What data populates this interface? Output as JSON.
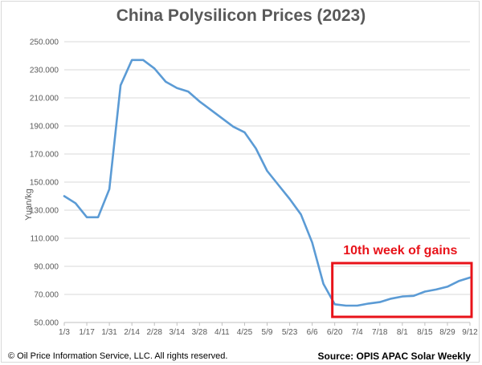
{
  "chart_data": {
    "type": "line",
    "title": "China Polysilicon Prices (2023)",
    "ylabel": "Yuan/kg",
    "ylim": [
      50000,
      250000
    ],
    "y_ticks": [
      "50.000",
      "70.000",
      "90.000",
      "110.000",
      "130.000",
      "150.000",
      "170.000",
      "190.000",
      "210.000",
      "230.000",
      "250.000"
    ],
    "x_tick_labels": [
      "1/3",
      "1/17",
      "1/31",
      "2/14",
      "2/28",
      "3/14",
      "3/28",
      "4/11",
      "4/25",
      "5/9",
      "5/23",
      "6/6",
      "6/20",
      "7/4",
      "7/18",
      "8/1",
      "8/15",
      "8/29",
      "9/12"
    ],
    "x": [
      "1/3",
      "1/10",
      "1/17",
      "1/24",
      "1/31",
      "2/7",
      "2/14",
      "2/21",
      "2/28",
      "3/7",
      "3/14",
      "3/21",
      "3/28",
      "4/4",
      "4/11",
      "4/18",
      "4/25",
      "5/2",
      "5/9",
      "5/16",
      "5/23",
      "5/30",
      "6/6",
      "6/13",
      "6/20",
      "6/27",
      "7/4",
      "7/11",
      "7/18",
      "7/25",
      "8/1",
      "8/8",
      "8/15",
      "8/22",
      "8/29",
      "9/5",
      "9/12"
    ],
    "series": [
      {
        "color": "#5b9bd5",
        "values": [
          140000,
          135000,
          125000,
          125000,
          145000,
          219000,
          237000,
          237000,
          231000,
          221500,
          217000,
          214500,
          207500,
          201500,
          195500,
          189500,
          185500,
          174000,
          158000,
          148000,
          138000,
          127000,
          107000,
          77500,
          63000,
          62000,
          62000,
          63500,
          64500,
          67000,
          68500,
          69000,
          72000,
          73500,
          75500,
          79500,
          82000
        ]
      }
    ],
    "grid": "horizontal",
    "annotations": [
      {
        "text": "10th week of gains",
        "color": "#e8131a",
        "box_range_x": [
          "6/20",
          "9/12"
        ]
      }
    ]
  },
  "footer": {
    "copyright": "© Oil Price Information Service, LLC.  All rights reserved.",
    "source": "Source: OPIS APAC Solar Weekly"
  }
}
